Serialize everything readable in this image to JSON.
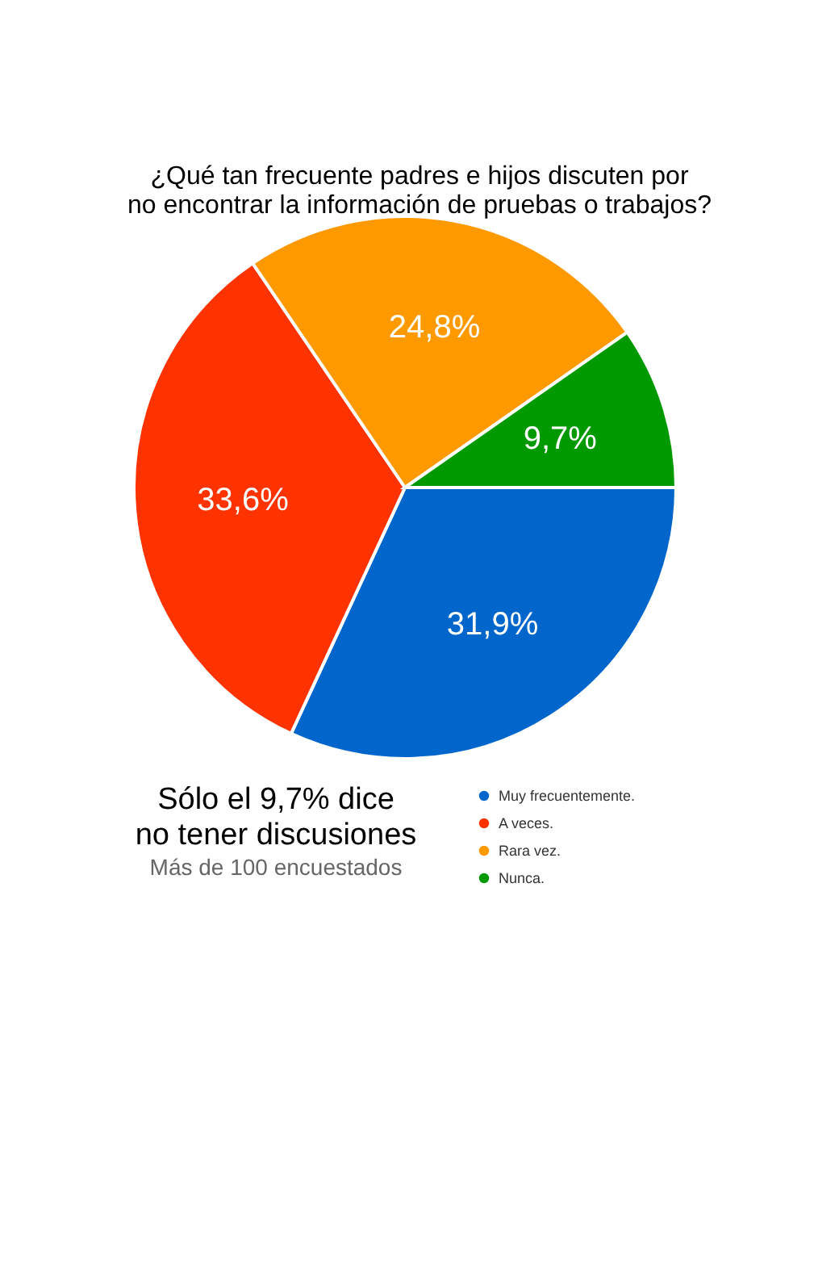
{
  "chart_data": {
    "type": "pie",
    "title": [
      "¿Qué tan frecuente padres e hijos discuten por",
      "no encontrar la información de pruebas o trabajos?"
    ],
    "categories": [
      "Muy frecuentemente.",
      "A veces.",
      "Rara vez.",
      "Nunca."
    ],
    "values": [
      31.9,
      33.6,
      24.8,
      9.7
    ],
    "colors": [
      "#0066cc",
      "#ff3300",
      "#ff9900",
      "#009900"
    ],
    "value_labels": [
      "31,9%",
      "33,6%",
      "24,8%",
      "9,7%"
    ],
    "legend": "bottom right",
    "annotations": [
      "Sólo el 9,7% dice",
      "no tener discusiones",
      "Más de 100 encuestados"
    ]
  }
}
